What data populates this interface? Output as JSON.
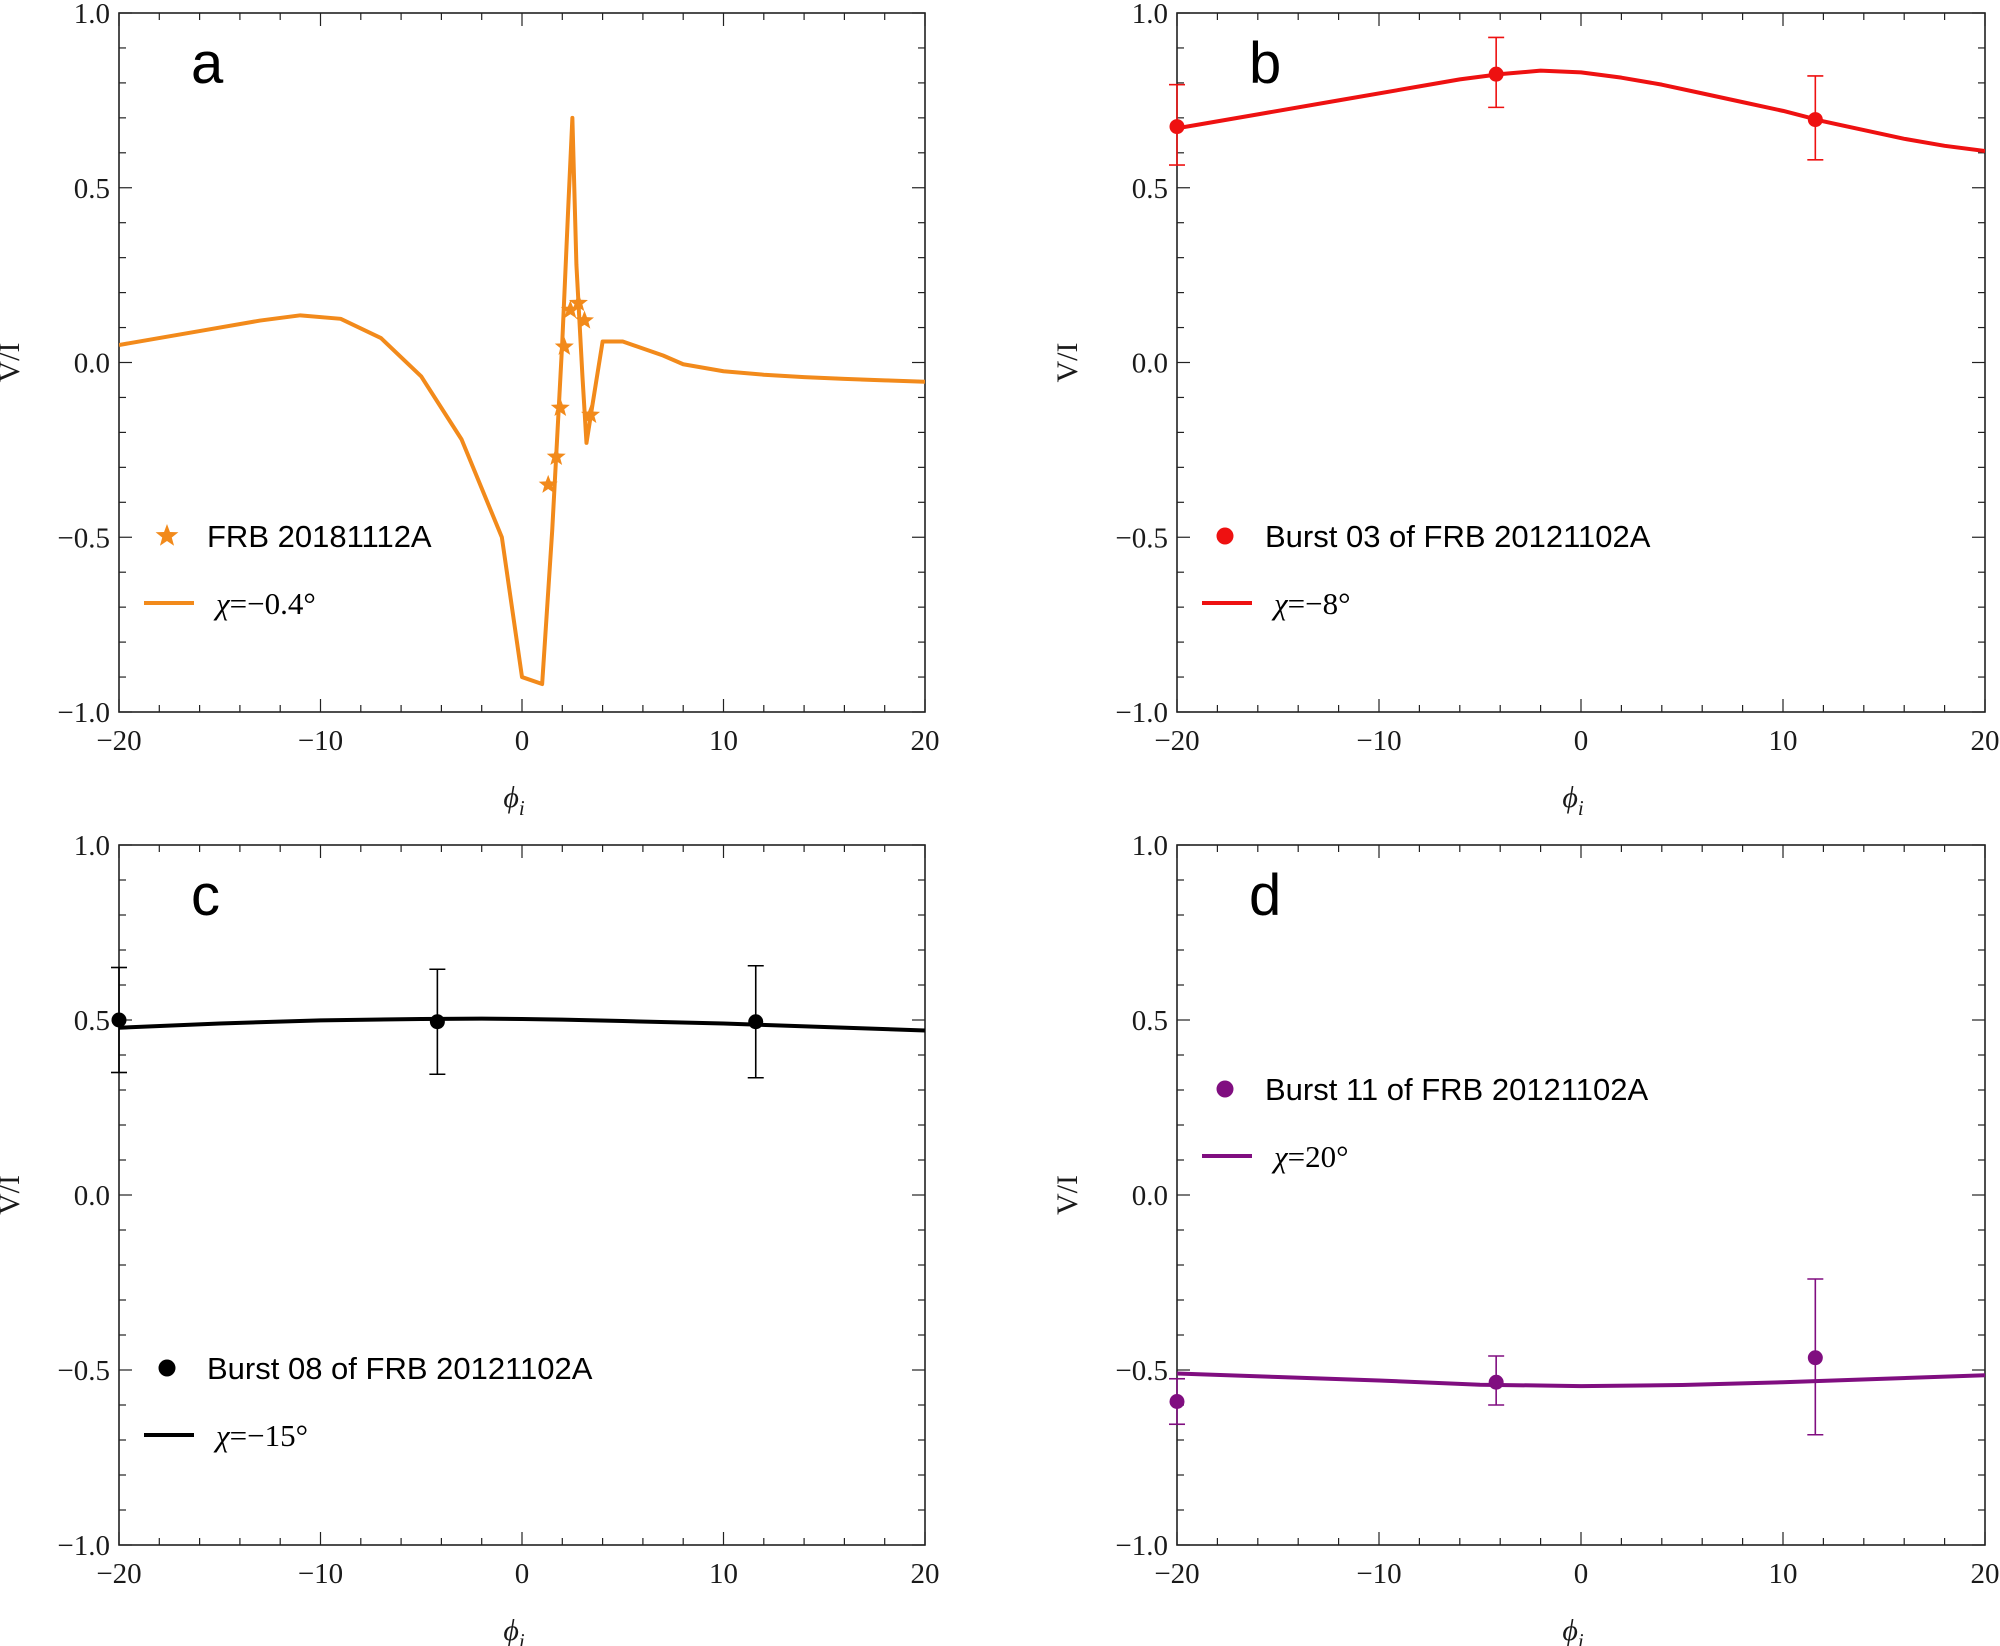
{
  "chart_data": [
    {
      "panel": "a",
      "type": "line",
      "color": "#f28a1b",
      "marker": "star",
      "xlabel": "ϕ",
      "xlabel_sub": "i",
      "ylabel": "V/I",
      "xlim": [
        -20,
        20
      ],
      "ylim": [
        -1.0,
        1.0
      ],
      "xticks": [
        -20,
        -10,
        0,
        10,
        20
      ],
      "xtick_labels": [
        "−20",
        "−10",
        "0",
        "10",
        "20"
      ],
      "yticks": [
        -1.0,
        -0.5,
        0.0,
        0.5,
        1.0
      ],
      "ytick_labels": [
        "−1.0",
        "−0.5",
        "0.0",
        "0.5",
        "1.0"
      ],
      "legend": {
        "marker_label": "FRB 20181112A",
        "line_label_value": "−0.4°"
      },
      "line": {
        "x": [
          -20,
          -16,
          -13,
          -11,
          -9,
          -7,
          -5,
          -3,
          -1,
          0,
          1,
          1.5,
          2,
          2.3,
          2.5,
          2.7,
          3,
          3.2,
          3.5,
          4,
          5,
          6,
          6.5,
          7,
          8,
          10,
          12,
          14,
          16,
          18,
          20
        ],
        "y": [
          0.05,
          0.09,
          0.12,
          0.135,
          0.125,
          0.07,
          -0.04,
          -0.22,
          -0.5,
          -0.9,
          -0.92,
          -0.48,
          0.06,
          0.45,
          0.7,
          0.28,
          -0.04,
          -0.23,
          -0.12,
          0.06,
          0.06,
          0.04,
          0.03,
          0.02,
          -0.005,
          -0.025,
          -0.035,
          -0.042,
          -0.047,
          -0.051,
          -0.055
        ]
      },
      "points": {
        "x": [
          1.3,
          1.7,
          1.9,
          2.1,
          2.4,
          2.8,
          3.1,
          3.4
        ],
        "y": [
          -0.35,
          -0.27,
          -0.13,
          0.045,
          0.15,
          0.17,
          0.12,
          -0.15
        ]
      }
    },
    {
      "panel": "b",
      "type": "line",
      "color": "#ee1111",
      "marker": "circle",
      "xlabel": "ϕ",
      "xlabel_sub": "i",
      "ylabel": "V/I",
      "xlim": [
        -20,
        20
      ],
      "ylim": [
        -1.0,
        1.0
      ],
      "xticks": [
        -20,
        -10,
        0,
        10,
        20
      ],
      "xtick_labels": [
        "−20",
        "−10",
        "0",
        "10",
        "20"
      ],
      "yticks": [
        -1.0,
        -0.5,
        0.0,
        0.5,
        1.0
      ],
      "ytick_labels": [
        "−1.0",
        "−0.5",
        "0.0",
        "0.5",
        "1.0"
      ],
      "legend": {
        "marker_label": "Burst 03 of FRB 20121102A",
        "line_label_value": "−8°"
      },
      "line": {
        "x": [
          -20,
          -16,
          -12,
          -8,
          -6,
          -4,
          -2,
          0,
          2,
          4,
          6,
          8,
          10,
          12,
          14,
          16,
          18,
          20
        ],
        "y": [
          0.67,
          0.71,
          0.75,
          0.79,
          0.81,
          0.825,
          0.835,
          0.83,
          0.815,
          0.795,
          0.77,
          0.745,
          0.72,
          0.69,
          0.665,
          0.64,
          0.62,
          0.605
        ]
      },
      "points": {
        "x": [
          -20,
          -4.2,
          11.6
        ],
        "y": [
          0.675,
          0.825,
          0.695
        ],
        "err_low": [
          0.565,
          0.73,
          0.58
        ],
        "err_high": [
          0.795,
          0.93,
          0.82
        ]
      }
    },
    {
      "panel": "c",
      "type": "line",
      "color": "#000000",
      "marker": "circle",
      "xlabel": "ϕ",
      "xlabel_sub": "i",
      "ylabel": "V/I",
      "xlim": [
        -20,
        20
      ],
      "ylim": [
        -1.0,
        1.0
      ],
      "xticks": [
        -20,
        -10,
        0,
        10,
        20
      ],
      "xtick_labels": [
        "−20",
        "−10",
        "0",
        "10",
        "20"
      ],
      "yticks": [
        -1.0,
        -0.5,
        0.0,
        0.5,
        1.0
      ],
      "ytick_labels": [
        "−1.0",
        "−0.5",
        "0.0",
        "0.5",
        "1.0"
      ],
      "legend": {
        "marker_label": "Burst 08 of FRB 20121102A",
        "line_label_value": "−15°"
      },
      "line": {
        "x": [
          -20,
          -15,
          -10,
          -5,
          -2,
          0,
          2,
          5,
          10,
          15,
          20
        ],
        "y": [
          0.478,
          0.49,
          0.499,
          0.503,
          0.504,
          0.503,
          0.501,
          0.497,
          0.49,
          0.48,
          0.47
        ]
      },
      "points": {
        "x": [
          -20,
          -4.2,
          11.6
        ],
        "y": [
          0.5,
          0.495,
          0.495
        ],
        "err_low": [
          0.35,
          0.345,
          0.335
        ],
        "err_high": [
          0.65,
          0.645,
          0.655
        ]
      }
    },
    {
      "panel": "d",
      "type": "line",
      "color": "#800e80",
      "marker": "circle",
      "xlabel": "ϕ",
      "xlabel_sub": "i",
      "ylabel": "V/I",
      "xlim": [
        -20,
        20
      ],
      "ylim": [
        -1.0,
        1.0
      ],
      "xticks": [
        -20,
        -10,
        0,
        10,
        20
      ],
      "xtick_labels": [
        "−20",
        "−10",
        "0",
        "10",
        "20"
      ],
      "yticks": [
        -1.0,
        -0.5,
        0.0,
        0.5,
        1.0
      ],
      "ytick_labels": [
        "−1.0",
        "−0.5",
        "0.0",
        "0.5",
        "1.0"
      ],
      "legend": {
        "marker_label": "Burst 11 of FRB 20121102A",
        "line_label_value": "20°"
      },
      "line": {
        "x": [
          -20,
          -15,
          -10,
          -5,
          0,
          5,
          10,
          15,
          20
        ],
        "y": [
          -0.51,
          -0.52,
          -0.53,
          -0.542,
          -0.546,
          -0.543,
          -0.535,
          -0.525,
          -0.515
        ]
      },
      "points": {
        "x": [
          -20,
          -4.2,
          11.6
        ],
        "y": [
          -0.59,
          -0.535,
          -0.465
        ],
        "err_low": [
          -0.655,
          -0.6,
          -0.685
        ],
        "err_high": [
          -0.525,
          -0.46,
          -0.24
        ]
      }
    }
  ]
}
